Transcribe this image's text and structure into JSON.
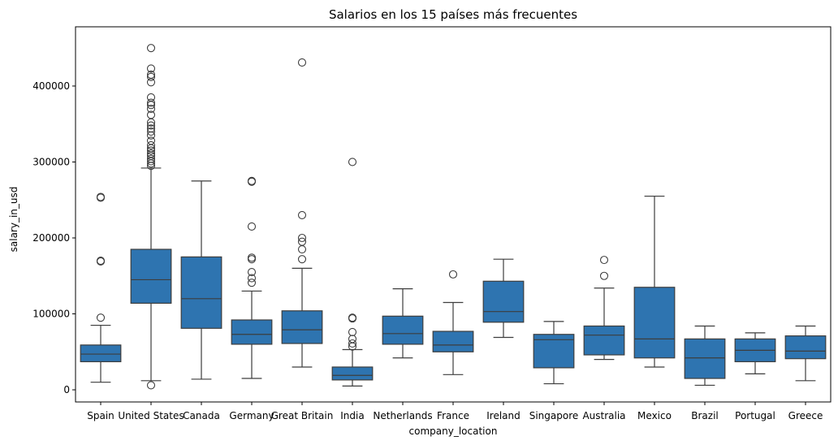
{
  "chart_data": {
    "type": "box",
    "title": "Salarios en los 15 países más frecuentes",
    "xlabel": "company_location",
    "ylabel": "salary_in_usd",
    "ylim": [
      -16000,
      478000
    ],
    "yticks": [
      0,
      100000,
      200000,
      300000,
      400000
    ],
    "ytick_labels": [
      "0",
      "100000",
      "200000",
      "300000",
      "400000"
    ],
    "grid": false,
    "box_color": "#2e74b0",
    "line_color": "#3d3d3d",
    "categories": [
      "Spain",
      "United States",
      "Canada",
      "Germany",
      "Great Britain",
      "India",
      "Netherlands",
      "France",
      "Ireland",
      "Singapore",
      "Australia",
      "Mexico",
      "Brazil",
      "Portugal",
      "Greece"
    ],
    "boxes": [
      {
        "category": "Spain",
        "whisker_low": 10000,
        "q1": 37000,
        "median": 47000,
        "q3": 59000,
        "whisker_high": 85000,
        "outliers": [
          95000,
          169000,
          170000,
          253000,
          254000
        ]
      },
      {
        "category": "United States",
        "whisker_low": 12000,
        "q1": 114000,
        "median": 145000,
        "q3": 185000,
        "whisker_high": 292000,
        "outliers": [
          6000,
          295000,
          298000,
          301000,
          304000,
          308000,
          311000,
          315000,
          318000,
          322000,
          328000,
          335000,
          340000,
          344000,
          348000,
          352000,
          362000,
          370000,
          375000,
          378000,
          385000,
          405000,
          412000,
          415000,
          423000,
          450000
        ]
      },
      {
        "category": "Canada",
        "whisker_low": 14000,
        "q1": 81000,
        "median": 120000,
        "q3": 175000,
        "whisker_high": 275000,
        "outliers": []
      },
      {
        "category": "Germany",
        "whisker_low": 15000,
        "q1": 60000,
        "median": 73000,
        "q3": 92000,
        "whisker_high": 130000,
        "outliers": [
          141000,
          147000,
          155000,
          172000,
          174000,
          215000,
          274000,
          275000
        ]
      },
      {
        "category": "Great Britain",
        "whisker_low": 30000,
        "q1": 61000,
        "median": 79000,
        "q3": 104000,
        "whisker_high": 160000,
        "outliers": [
          172000,
          185000,
          195000,
          200000,
          230000,
          431000
        ]
      },
      {
        "category": "India",
        "whisker_low": 5000,
        "q1": 13000,
        "median": 19000,
        "q3": 30000,
        "whisker_high": 53000,
        "outliers": [
          57000,
          61000,
          67000,
          76000,
          94000,
          95000,
          300000
        ]
      },
      {
        "category": "Netherlands",
        "whisker_low": 42000,
        "q1": 60000,
        "median": 74000,
        "q3": 97000,
        "whisker_high": 133000,
        "outliers": []
      },
      {
        "category": "France",
        "whisker_low": 20000,
        "q1": 50000,
        "median": 59000,
        "q3": 77000,
        "whisker_high": 115000,
        "outliers": [
          152000
        ]
      },
      {
        "category": "Ireland",
        "whisker_low": 69000,
        "q1": 89000,
        "median": 103000,
        "q3": 143000,
        "whisker_high": 172000,
        "outliers": []
      },
      {
        "category": "Singapore",
        "whisker_low": 8000,
        "q1": 29000,
        "median": 66000,
        "q3": 73000,
        "whisker_high": 90000,
        "outliers": []
      },
      {
        "category": "Australia",
        "whisker_low": 40000,
        "q1": 46000,
        "median": 72000,
        "q3": 84000,
        "whisker_high": 134000,
        "outliers": [
          150000,
          171000
        ]
      },
      {
        "category": "Mexico",
        "whisker_low": 30000,
        "q1": 42000,
        "median": 67000,
        "q3": 135000,
        "whisker_high": 255000,
        "outliers": []
      },
      {
        "category": "Brazil",
        "whisker_low": 6000,
        "q1": 15000,
        "median": 42000,
        "q3": 67000,
        "whisker_high": 84000,
        "outliers": []
      },
      {
        "category": "Portugal",
        "whisker_low": 21000,
        "q1": 37000,
        "median": 52000,
        "q3": 67000,
        "whisker_high": 75000,
        "outliers": []
      },
      {
        "category": "Greece",
        "whisker_low": 12000,
        "q1": 41000,
        "median": 51000,
        "q3": 71000,
        "whisker_high": 84000,
        "outliers": []
      }
    ]
  }
}
